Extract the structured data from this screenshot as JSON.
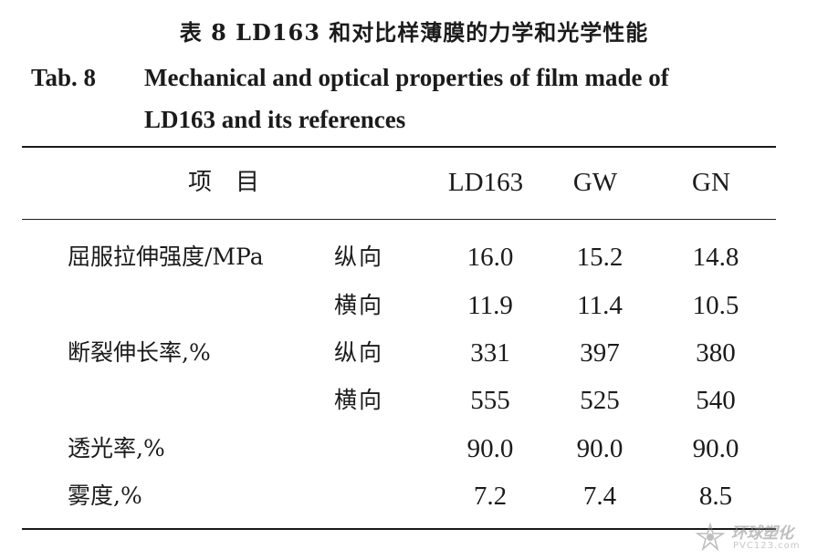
{
  "caption": {
    "cn": "表 8   LD163 和对比样薄膜的力学和光学性能",
    "en_label": "Tab. 8",
    "en_line1": "Mechanical and optical properties of film made of",
    "en_line2": "LD163 and its references"
  },
  "table": {
    "header": {
      "item": "项目",
      "columns": [
        "LD163",
        "GW",
        "GN"
      ]
    },
    "rows": [
      {
        "property": "屈服拉伸强度/MPa",
        "direction": "纵向",
        "values": [
          "16.0",
          "15.2",
          "14.8"
        ]
      },
      {
        "property": "",
        "direction": "横向",
        "values": [
          "11.9",
          "11.4",
          "10.5"
        ]
      },
      {
        "property": "断裂伸长率,%",
        "direction": "纵向",
        "values": [
          "331",
          "397",
          "380"
        ]
      },
      {
        "property": "",
        "direction": "横向",
        "values": [
          "555",
          "525",
          "540"
        ]
      },
      {
        "property": "透光率,%",
        "direction": "",
        "values": [
          "90.0",
          "90.0",
          "90.0"
        ]
      },
      {
        "property": "雾度,%",
        "direction": "",
        "values": [
          "7.2",
          "7.4",
          "8.5"
        ]
      }
    ]
  },
  "watermark": {
    "cn": "环球塑化",
    "url": "PVC123.com"
  }
}
